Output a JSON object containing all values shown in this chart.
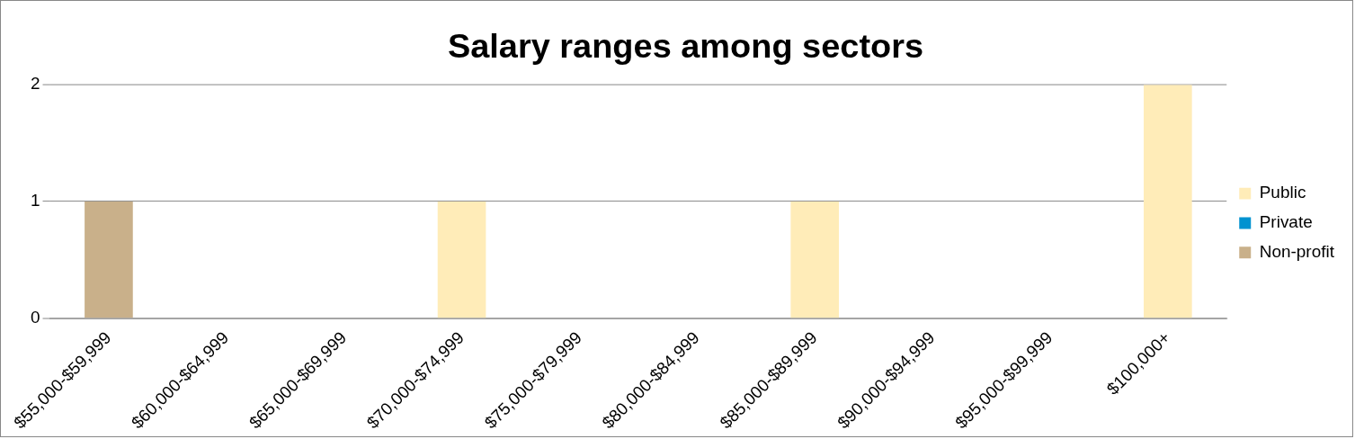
{
  "chart_data": {
    "type": "bar",
    "title": "Salary ranges among sectors",
    "categories": [
      "$55,000-$59,999",
      "$60,000-$64,999",
      "$65,000-$69,999",
      "$70,000-$74,999",
      "$75,000-$79,999",
      "$80,000-$84,999",
      "$85,000-$89,999",
      "$90,000-$94,999",
      "$95,000-$99,999",
      "$100,000+"
    ],
    "series": [
      {
        "name": "Public",
        "color": "#ffecb8",
        "values": [
          0,
          0,
          0,
          1,
          0,
          0,
          1,
          0,
          0,
          2
        ]
      },
      {
        "name": "Private",
        "color": "#0092d0",
        "values": [
          0,
          0,
          0,
          0,
          0,
          0,
          0,
          0,
          0,
          0
        ]
      },
      {
        "name": "Non-profit",
        "color": "#c9b08a",
        "values": [
          1,
          0,
          0,
          0,
          0,
          0,
          0,
          0,
          0,
          0
        ]
      }
    ],
    "stacked": true,
    "ylim": [
      0,
      2
    ],
    "yticks": [
      0,
      1,
      2
    ],
    "grid": "y",
    "legend": "right"
  }
}
